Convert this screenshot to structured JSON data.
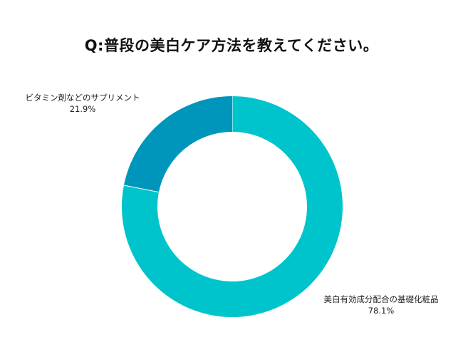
{
  "chart_data": {
    "type": "pie",
    "title": "Q:普段の美白ケア方法を教えてください。",
    "categories": [
      "美白有効成分配合の基礎化粧品",
      "ビタミン剤などのサプリメント"
    ],
    "values": [
      78.1,
      21.9
    ],
    "value_labels": [
      "78.1%",
      "21.9%"
    ],
    "colors": [
      "#00c4cc",
      "#0095bb"
    ],
    "donut": true,
    "legend": "none"
  }
}
